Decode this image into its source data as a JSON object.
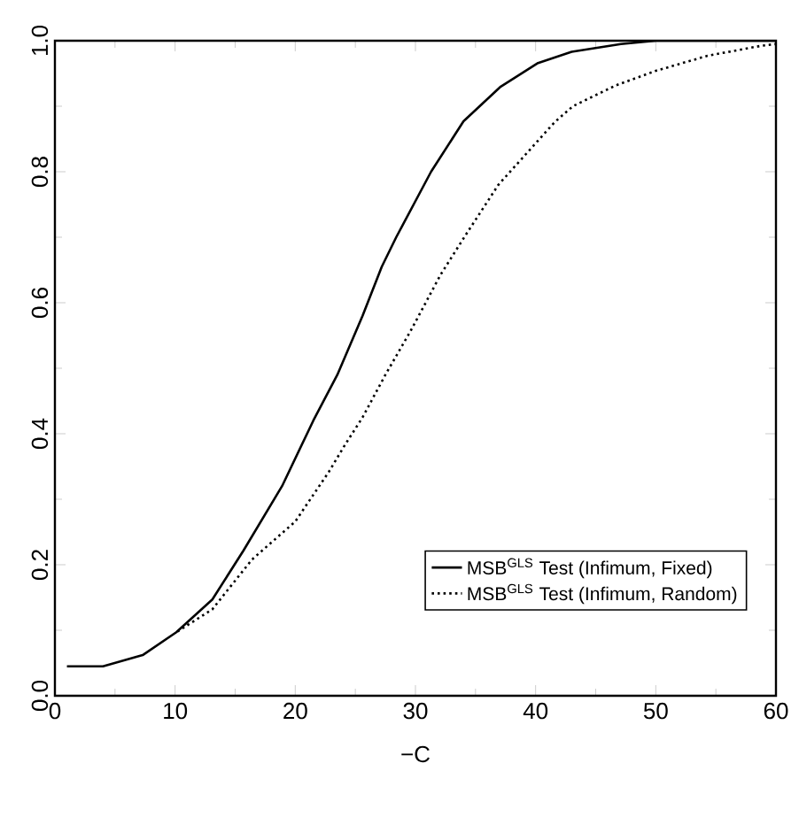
{
  "chart_data": {
    "type": "line",
    "xlabel": "−C",
    "xlim": [
      0,
      60
    ],
    "ylim": [
      0,
      1
    ],
    "xticks": [
      0,
      10,
      20,
      30,
      40,
      50,
      60
    ],
    "yticks": [
      {
        "value": 0,
        "label": "0.0"
      },
      0.2,
      0.4,
      0.6,
      0.8,
      {
        "value": 1,
        "label": "1.0"
      }
    ],
    "legend": "bottom right",
    "marker": "none",
    "grid": false,
    "series": [
      {
        "name": "MSB$^{GLS}$ Test (Infimum, Fixed)",
        "color": "#000000",
        "line_style": "solid",
        "x": [
          1,
          4,
          7.3,
          10.1,
          13.1,
          15.7,
          18.9,
          21.5,
          23.5,
          25.6,
          27.2,
          28.4,
          31.3,
          34,
          37.1,
          40.2,
          43,
          47.1,
          50,
          60
        ],
        "values": [
          0.045,
          0.045,
          0.062,
          0.097,
          0.147,
          0.222,
          0.32,
          0.42,
          0.49,
          0.58,
          0.655,
          0.7,
          0.8,
          0.877,
          0.93,
          0.966,
          0.983,
          0.995,
          1.0,
          1.0
        ]
      },
      {
        "name": "MSB$^{GLS}$ Test (Infimum, Random)",
        "color": "#000000",
        "line_style": "dotted",
        "x": [
          10.2,
          13.1,
          16.4,
          20,
          22.8,
          24.1,
          25.6,
          27.5,
          29.6,
          32.1,
          34.2,
          36.9,
          39.1,
          41.6,
          43.1,
          46.7,
          50,
          54.3,
          58.7,
          60
        ],
        "values": [
          0.098,
          0.132,
          0.208,
          0.266,
          0.342,
          0.382,
          0.425,
          0.49,
          0.557,
          0.643,
          0.704,
          0.78,
          0.825,
          0.876,
          0.9,
          0.932,
          0.954,
          0.977,
          0.992,
          0.995
        ]
      }
    ]
  }
}
